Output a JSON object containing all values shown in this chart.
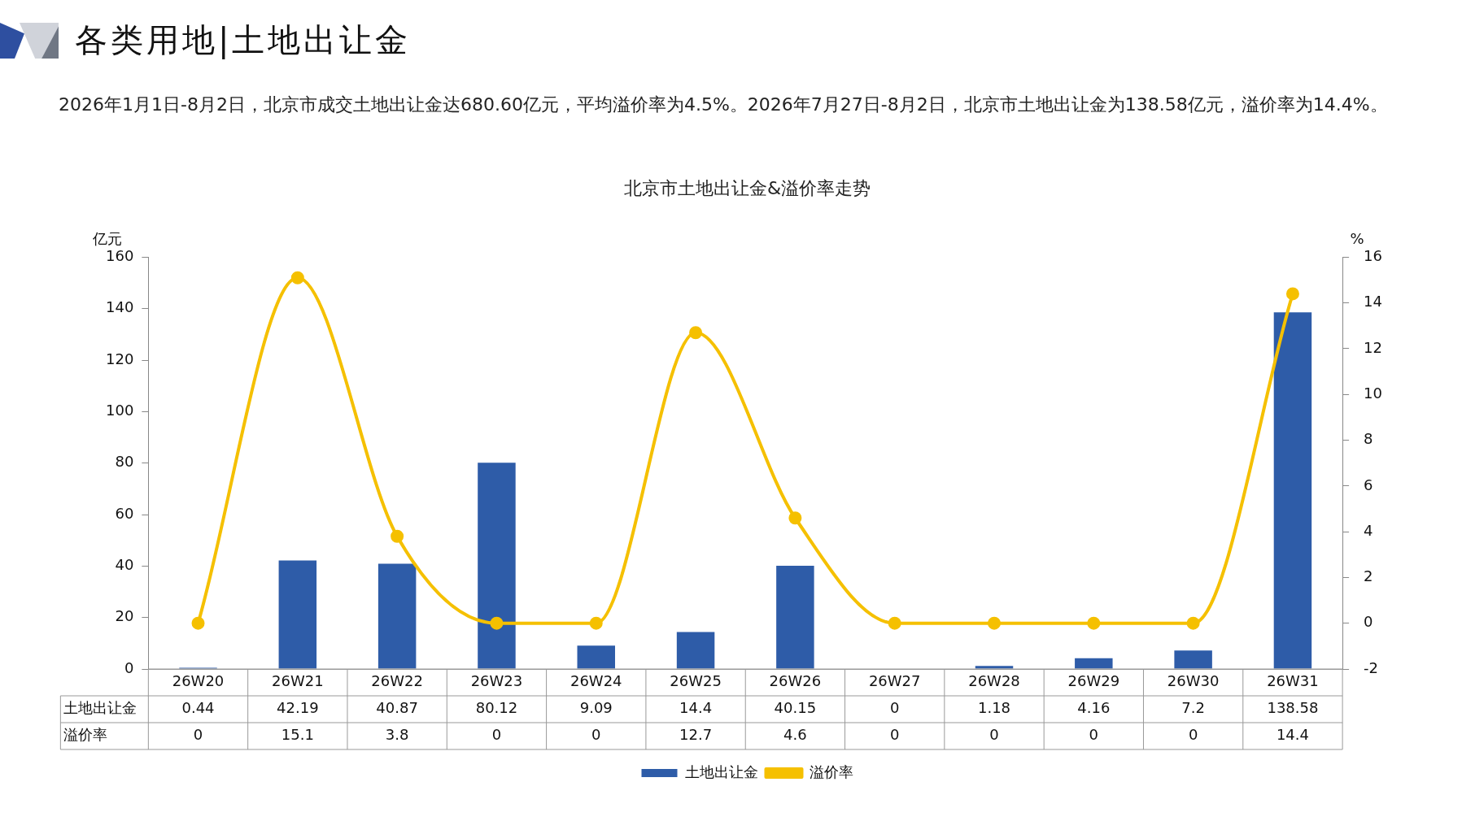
{
  "chart_data": {
    "type": "bar",
    "title": "北京市土地出让金&溢价率走势",
    "annotations": [
      "各类用地|土地出让金",
      "2026年1月1日-8月2日，北京市成交土地出让金达680.60亿元，平均溢价率为4.5%。2026年7月27日-8月2日，北京市土地出让金为138.58亿元，溢价率为14.4%。"
    ],
    "ylabel": "亿元",
    "y2label": "%",
    "categories": [
      "26W20",
      "26W21",
      "26W22",
      "26W23",
      "26W24",
      "26W25",
      "26W26",
      "26W27",
      "26W28",
      "26W29",
      "26W30",
      "26W31"
    ],
    "series": [
      {
        "name": "土地出让金",
        "color": "#2e5ca8",
        "values": [
          0.44,
          42.19,
          40.87,
          80.12,
          9.09,
          14.4,
          40.15,
          0,
          1.18,
          4.16,
          7.2,
          138.58
        ]
      },
      {
        "name": "溢价率",
        "type": "line",
        "axis": "y2",
        "color": "#f5c000",
        "values": [
          0,
          15.1,
          3.8,
          0,
          0,
          12.7,
          4.6,
          0,
          0,
          0,
          0,
          14.4
        ]
      }
    ],
    "ylim": [
      0,
      160
    ],
    "yticks": [
      0,
      20,
      40,
      60,
      80,
      100,
      120,
      140,
      160
    ],
    "y2lim": [
      -2,
      16
    ],
    "y2ticks": [
      -2,
      0,
      2,
      4,
      6,
      8,
      10,
      12,
      14,
      16
    ],
    "data_labels": true,
    "legend": "bottom",
    "marker": "circle",
    "grid": false
  }
}
